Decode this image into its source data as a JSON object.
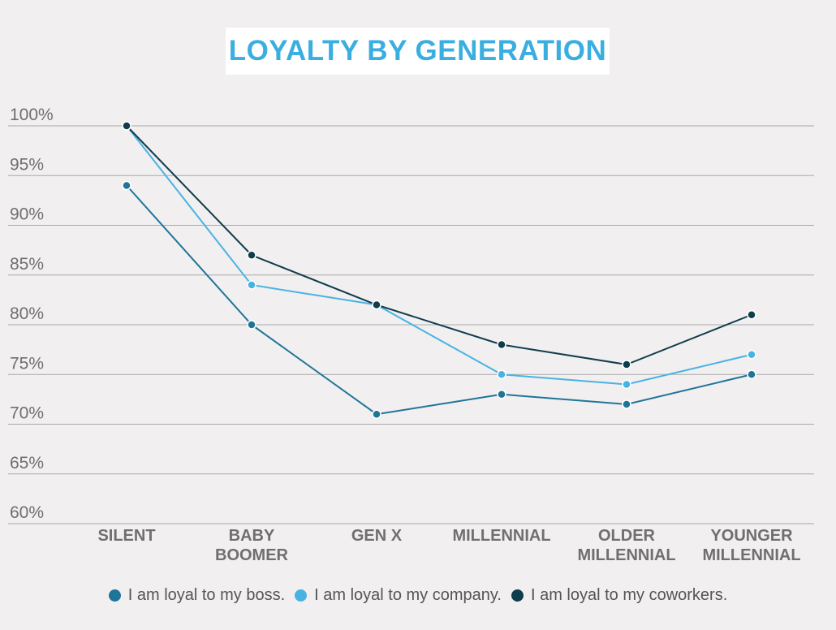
{
  "title": "LOYALTY BY GENERATION",
  "legend": [
    {
      "label": "I am loyal to my boss.",
      "color": "#1f7598"
    },
    {
      "label": "I am loyal to my company.",
      "color": "#48b3e3"
    },
    {
      "label": "I am loyal to my coworkers.",
      "color": "#0f3d4c"
    }
  ],
  "chart_data": {
    "type": "line",
    "title": "LOYALTY BY GENERATION",
    "categories": [
      [
        "SILENT"
      ],
      [
        "BABY",
        "BOOMER"
      ],
      [
        "GEN X"
      ],
      [
        "MILLENNIAL"
      ],
      [
        "OLDER",
        "MILLENNIAL"
      ],
      [
        "YOUNGER",
        "MILLENNIAL"
      ]
    ],
    "yticks": [
      "100%",
      "95%",
      "90%",
      "85%",
      "80%",
      "75%",
      "70%",
      "65%",
      "60%"
    ],
    "ylim": [
      60,
      100
    ],
    "grid": true,
    "legend_position": "bottom",
    "series": [
      {
        "name": "I am loyal to my boss.",
        "color": "#1f7598",
        "values": [
          94,
          80,
          71,
          73,
          72,
          75
        ]
      },
      {
        "name": "I am loyal to my company.",
        "color": "#48b3e3",
        "values": [
          100,
          84,
          82,
          75,
          74,
          77
        ]
      },
      {
        "name": "I am loyal to my coworkers.",
        "color": "#0f3d4c",
        "values": [
          100,
          87,
          82,
          78,
          76,
          81
        ]
      }
    ]
  }
}
